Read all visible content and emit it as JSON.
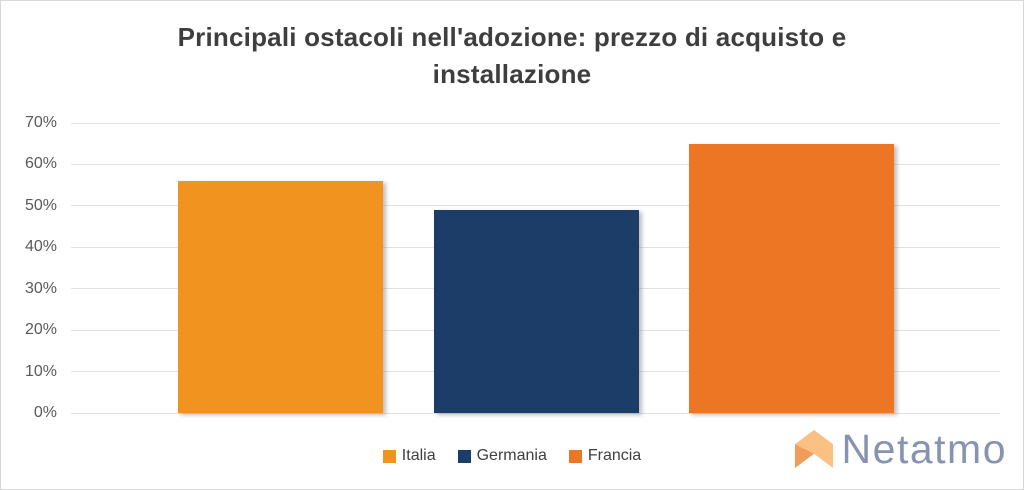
{
  "chart_data": {
    "type": "bar",
    "title": "Principali ostacoli nell'adozione: prezzo di acquisto e installazione",
    "title_lines": [
      "Principali ostacoli nell'adozione: prezzo di acquisto e",
      "installazione"
    ],
    "categories": [
      "Italia",
      "Germania",
      "Francia"
    ],
    "values": [
      56,
      49,
      65
    ],
    "unit": "%",
    "bar_colors": [
      "#F0941F",
      "#1C3D68",
      "#EC7623"
    ],
    "ylim": [
      0,
      70
    ],
    "yticks": [
      "0%",
      "10%",
      "20%",
      "30%",
      "40%",
      "50%",
      "60%",
      "70%"
    ],
    "grid": true,
    "legend_position": "bottom",
    "legend_items": [
      {
        "label": "Italia",
        "color": "#F0941F"
      },
      {
        "label": "Germania",
        "color": "#1C3D68"
      },
      {
        "label": "Francia",
        "color": "#EC7623"
      }
    ]
  },
  "logo": {
    "text": "Netatmo",
    "text_color": "#8793B1",
    "icon": "netatmo-house-icon",
    "icon_color": "#FBC083",
    "icon_fold_color": "#EF9D58"
  },
  "colors": {
    "title": "#3E3E3E",
    "tick_label": "#595959",
    "legend_label": "#3F3F3F",
    "gridline": "#E2E2E2",
    "border": "#D8D8D8",
    "background": "#FFFFFF"
  }
}
